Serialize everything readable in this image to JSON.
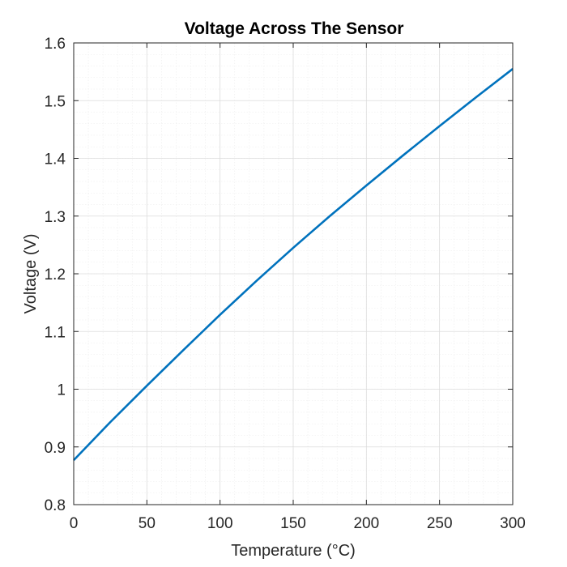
{
  "chart_data": {
    "type": "line",
    "title": "Voltage Across The Sensor",
    "xlabel": "Temperature (°C)",
    "ylabel": "Voltage (V)",
    "xlim": [
      0,
      300
    ],
    "ylim": [
      0.8,
      1.6
    ],
    "xticks": [
      0,
      50,
      100,
      150,
      200,
      250,
      300
    ],
    "xtick_labels": [
      "0",
      "50",
      "100",
      "150",
      "200",
      "250",
      "300"
    ],
    "yticks": [
      0.8,
      0.9,
      1.0,
      1.1,
      1.2,
      1.3,
      1.4,
      1.5,
      1.6
    ],
    "ytick_labels": [
      "0.8",
      "0.9",
      "1",
      "1.1",
      "1.2",
      "1.3",
      "1.4",
      "1.5",
      "1.6"
    ],
    "grid": true,
    "minor_grid": true,
    "color": "#0072bd",
    "series": [
      {
        "x": [
          0,
          25,
          50,
          75,
          100,
          125,
          150,
          175,
          200,
          225,
          250,
          275,
          300
        ],
        "values": [
          0.877,
          0.943,
          1.006,
          1.068,
          1.129,
          1.188,
          1.245,
          1.3,
          1.353,
          1.405,
          1.456,
          1.506,
          1.555
        ]
      }
    ]
  }
}
